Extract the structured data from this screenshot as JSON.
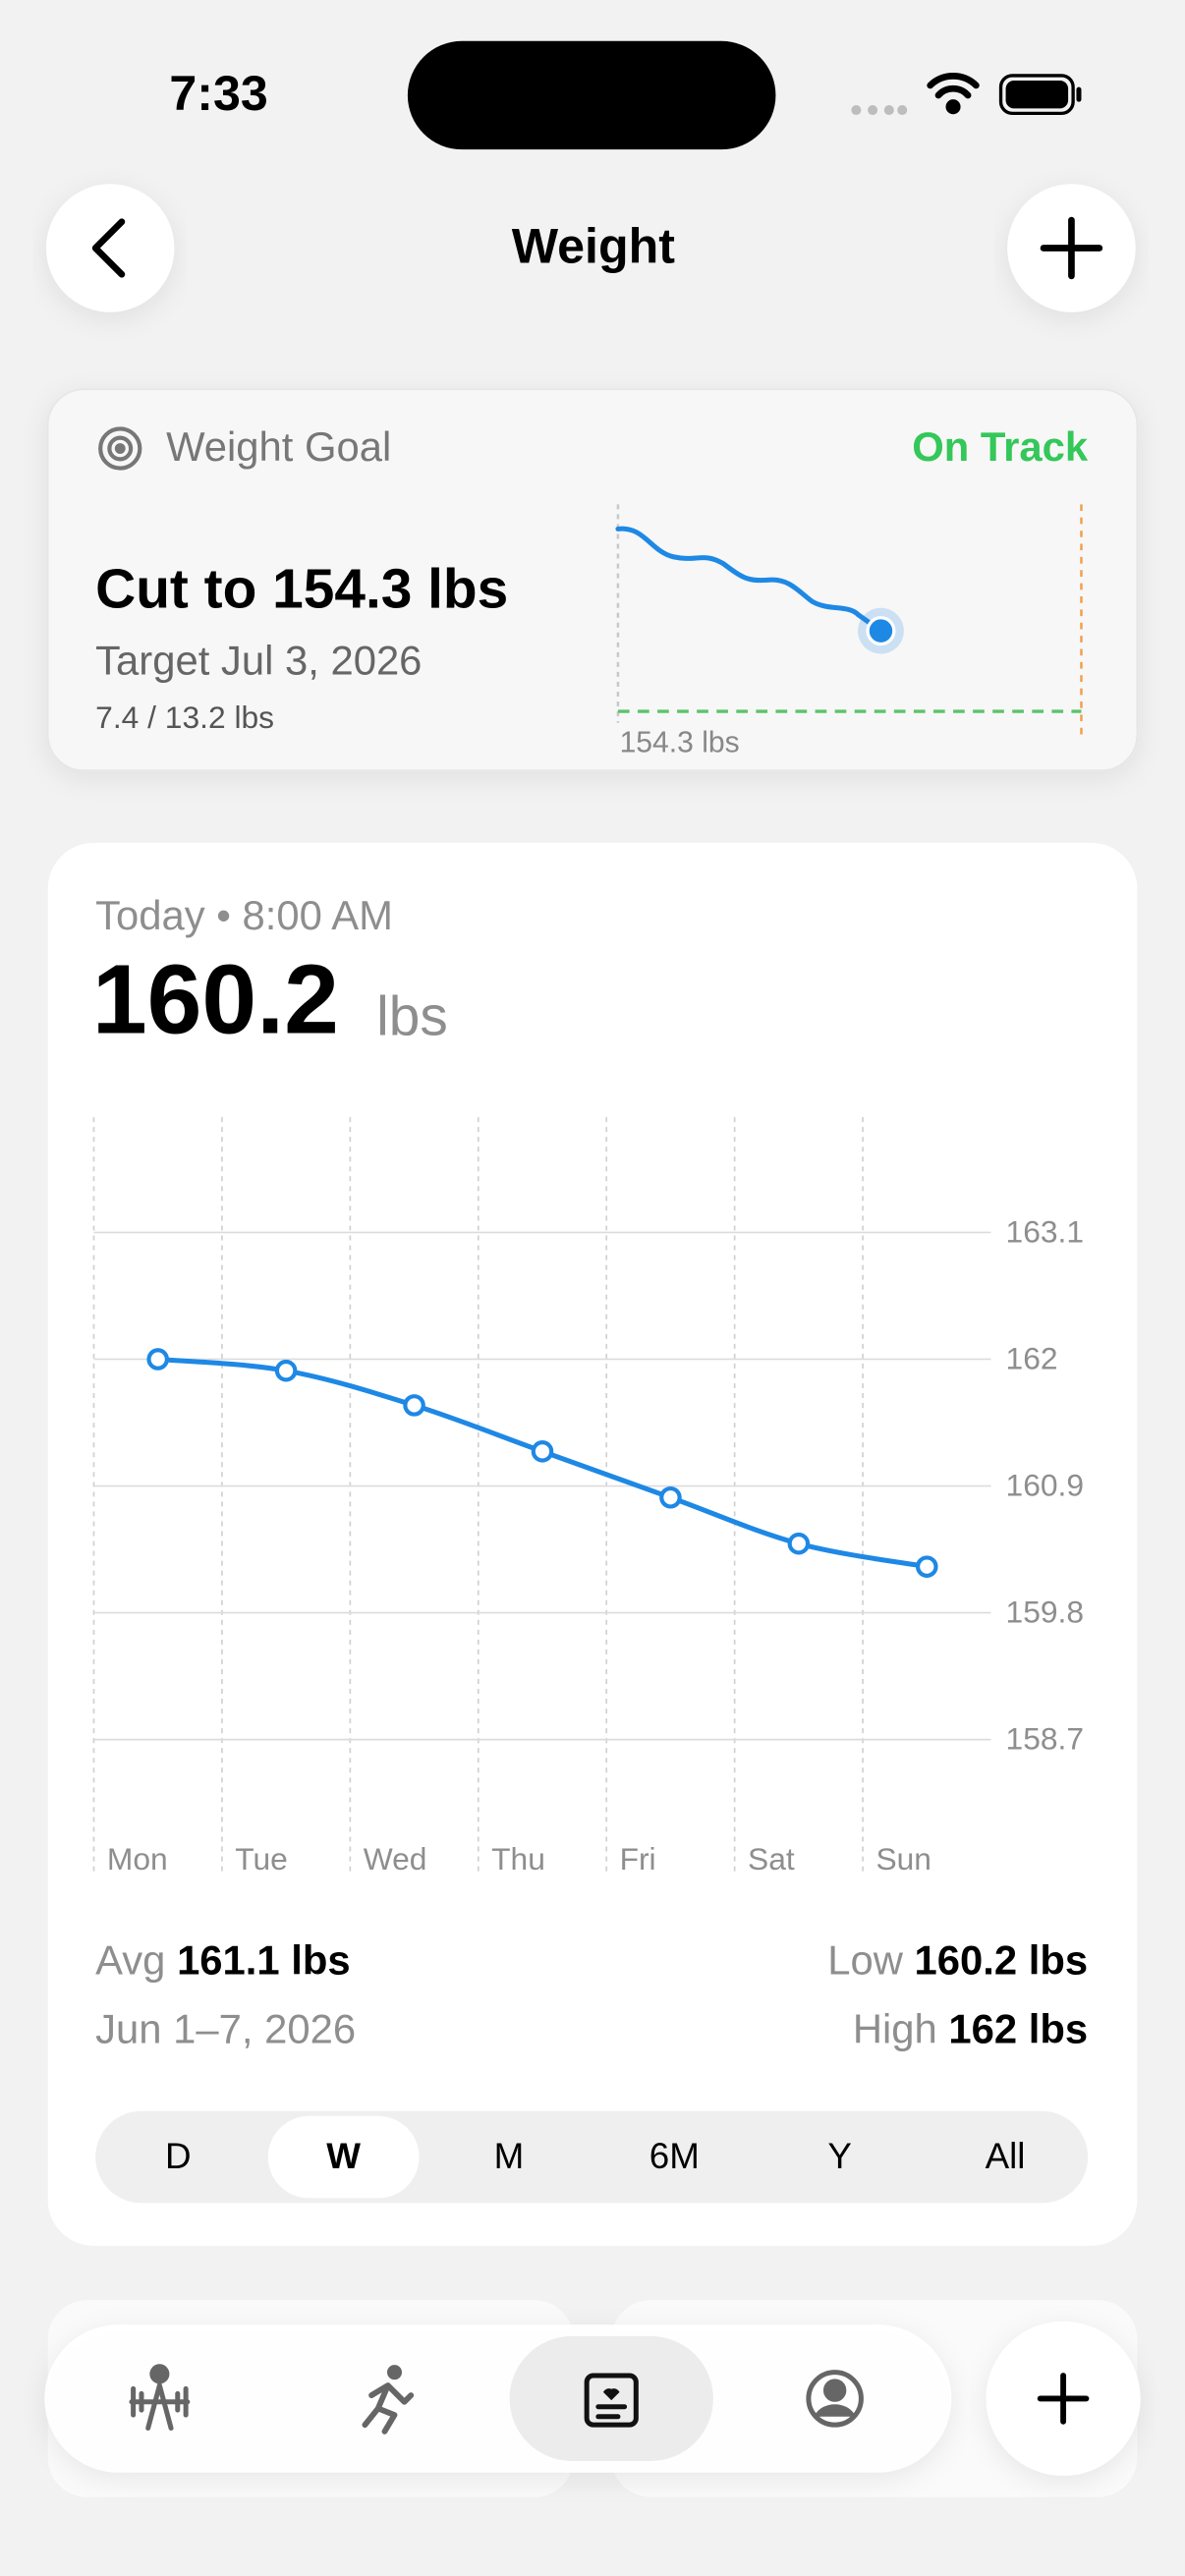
{
  "status_bar": {
    "time": "7:33"
  },
  "header": {
    "title": "Weight"
  },
  "goal": {
    "title": "Weight Goal",
    "status": "On Track",
    "headline": "Cut to 154.3 lbs",
    "target": "Target Jul 3, 2026",
    "progress": "7.4 / 13.2 lbs",
    "goal_line_label": "154.3 lbs"
  },
  "current": {
    "timestamp": "Today • 8:00 AM",
    "value": "160.2",
    "unit": "lbs"
  },
  "chart_data": {
    "type": "line",
    "categories": [
      "Mon",
      "Tue",
      "Wed",
      "Thu",
      "Fri",
      "Sat",
      "Sun"
    ],
    "values": [
      162,
      161.9,
      161.6,
      161.2,
      160.8,
      160.4,
      160.2
    ],
    "color": "#1e88e5",
    "ylim": [
      157.9,
      164.1
    ],
    "yticks": [
      163.1,
      162,
      160.9,
      159.8,
      158.7
    ],
    "grid": true
  },
  "summary": {
    "avg_label": "Avg",
    "avg": "161.1 lbs",
    "range": "Jun 1–7, 2026",
    "low_label": "Low",
    "low": "160.2 lbs",
    "high_label": "High",
    "high": "162 lbs"
  },
  "ranges": [
    "D",
    "W",
    "M",
    "6M",
    "Y",
    "All"
  ],
  "selected_range": 1
}
